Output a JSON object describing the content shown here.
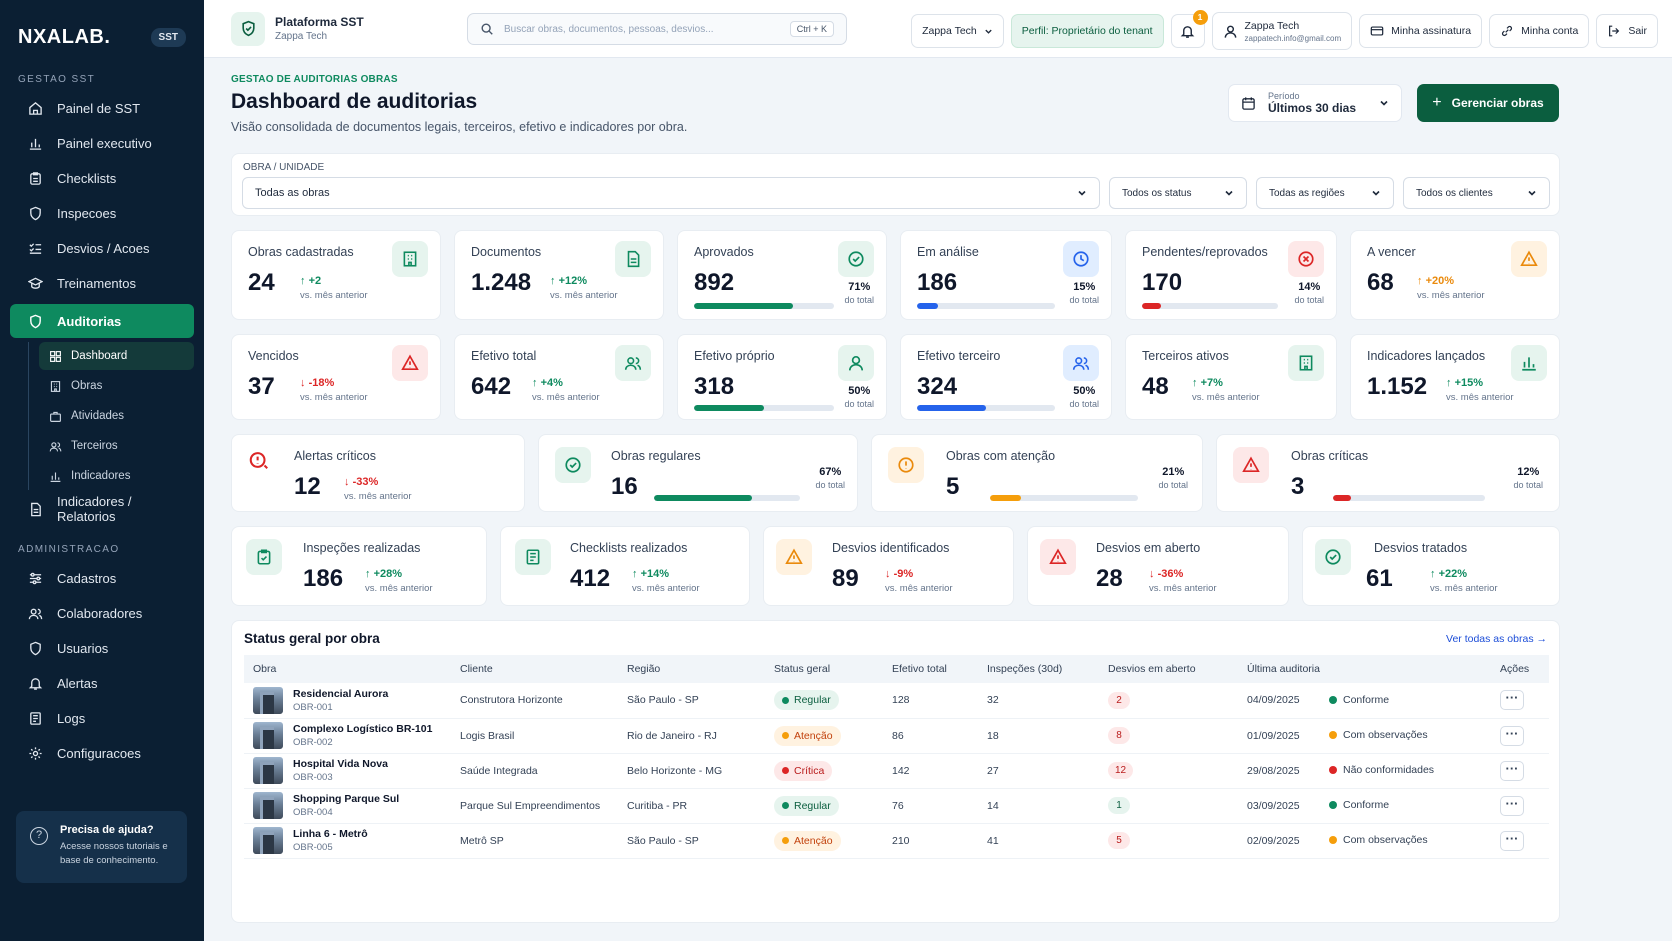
{
  "sidebar": {
    "brand": "NXALAB.",
    "badge": "SST",
    "sections": [
      {
        "label": "GESTAO SST"
      },
      {
        "label": "ADMINISTRACAO"
      }
    ],
    "items": {
      "painel_sst": "Painel de SST",
      "painel_exec": "Painel executivo",
      "checklists": "Checklists",
      "inspecoes": "Inspecoes",
      "desvios": "Desvios / Acoes",
      "treinamentos": "Treinamentos",
      "auditorias": "Auditorias",
      "indicadores": "Indicadores / Relatorios",
      "cadastros": "Cadastros",
      "colaboradores": "Colaboradores",
      "usuarios": "Usuarios",
      "alertas": "Alertas",
      "logs": "Logs",
      "config": "Configuracoes"
    },
    "sub_items": {
      "dashboard": "Dashboard",
      "obras": "Obras",
      "atividades": "Atividades",
      "terceiros": "Terceiros",
      "indicadores": "Indicadores"
    },
    "help": {
      "title": "Precisa de ajuda?",
      "text": "Acesse nossos tutoriais e base de conhecimento."
    }
  },
  "topbar": {
    "platform_title": "Plataforma SST",
    "platform_sub": "Zappa Tech",
    "search_placeholder": "Buscar obras, documentos, pessoas, desvios...",
    "search_kbd": "Ctrl + K",
    "tenant": "Zappa Tech",
    "perfil": "Perfil: Proprietário do tenant",
    "notifications": "1",
    "user_name": "Zappa Tech",
    "user_email": "zappatech.info@gmail.com",
    "assinatura": "Minha assinatura",
    "conta": "Minha conta",
    "sair": "Sair"
  },
  "header": {
    "crumb": "GESTAO DE AUDITORIAS OBRAS",
    "title": "Dashboard de auditorias",
    "subtitle": "Visão consolidada de documentos legais, terceiros, efetivo e indicadores por obra.",
    "period_label": "Período",
    "period_value": "Últimos 30 dias",
    "manage": "Gerenciar obras"
  },
  "filters": {
    "label": "OBRA / UNIDADE",
    "obra": "Todas as obras",
    "status": "Todos os status",
    "regioes": "Todas as regiões",
    "clientes": "Todos os clientes"
  },
  "vs_text": "vs. mês anterior",
  "total_text": "do total",
  "row1": {
    "obras": {
      "label": "Obras cadastradas",
      "value": "24",
      "delta": "+2"
    },
    "docs": {
      "label": "Documentos",
      "value": "1.248",
      "delta": "+12%"
    },
    "aprov": {
      "label": "Aprovados",
      "value": "892",
      "pct": "71%",
      "fill": 0.71
    },
    "analise": {
      "label": "Em análise",
      "value": "186",
      "pct": "15%",
      "fill": 0.15
    },
    "pend": {
      "label": "Pendentes/reprovados",
      "value": "170",
      "pct": "14%",
      "fill": 0.14
    },
    "vencer": {
      "label": "A vencer",
      "value": "68",
      "delta": "+20%"
    }
  },
  "row2": {
    "vencidos": {
      "label": "Vencidos",
      "value": "37",
      "delta": "-18%"
    },
    "efetivo": {
      "label": "Efetivo total",
      "value": "642",
      "delta": "+4%"
    },
    "proprio": {
      "label": "Efetivo próprio",
      "value": "318",
      "pct": "50%",
      "fill": 0.5
    },
    "terceiro": {
      "label": "Efetivo terceiro",
      "value": "324",
      "pct": "50%",
      "fill": 0.5
    },
    "ativos": {
      "label": "Terceiros ativos",
      "value": "48",
      "delta": "+7%"
    },
    "indic": {
      "label": "Indicadores lançados",
      "value": "1.152",
      "delta": "+15%"
    }
  },
  "row3": {
    "alertas": {
      "label": "Alertas críticos",
      "value": "12",
      "delta": "-33%"
    },
    "regulares": {
      "label": "Obras regulares",
      "value": "16",
      "pct": "67%",
      "fill": 0.67
    },
    "atencao": {
      "label": "Obras com atenção",
      "value": "5",
      "pct": "21%",
      "fill": 0.21
    },
    "criticas": {
      "label": "Obras críticas",
      "value": "3",
      "pct": "12%",
      "fill": 0.12
    }
  },
  "row4": {
    "inspecoes": {
      "label": "Inspeções realizadas",
      "value": "186",
      "delta": "+28%"
    },
    "checklists": {
      "label": "Checklists realizados",
      "value": "412",
      "delta": "+14%"
    },
    "identificados": {
      "label": "Desvios identificados",
      "value": "89",
      "delta": "-9%"
    },
    "aberto": {
      "label": "Desvios em aberto",
      "value": "28",
      "delta": "-36%"
    },
    "tratados": {
      "label": "Desvios tratados",
      "value": "61",
      "delta": "+22%"
    }
  },
  "table": {
    "title": "Status geral por obra",
    "link": "Ver todas as obras",
    "headers": [
      "Obra",
      "Cliente",
      "Região",
      "Status geral",
      "Efetivo total",
      "Inspeções (30d)",
      "Desvios em aberto",
      "Última auditoria",
      "Ações"
    ],
    "rows": [
      {
        "name": "Residencial Aurora",
        "code": "OBR-001",
        "cliente": "Construtora Horizonte",
        "regiao": "São Paulo - SP",
        "status": "Regular",
        "efetivo": "128",
        "insp": "32",
        "desvios": "2",
        "data": "04/09/2025",
        "aud": "Conforme"
      },
      {
        "name": "Complexo Logístico BR-101",
        "code": "OBR-002",
        "cliente": "Logis Brasil",
        "regiao": "Rio de Janeiro - RJ",
        "status": "Atenção",
        "efetivo": "86",
        "insp": "18",
        "desvios": "8",
        "data": "01/09/2025",
        "aud": "Com observações"
      },
      {
        "name": "Hospital Vida Nova",
        "code": "OBR-003",
        "cliente": "Saúde Integrada",
        "regiao": "Belo Horizonte - MG",
        "status": "Crítica",
        "efetivo": "142",
        "insp": "27",
        "desvios": "12",
        "data": "29/08/2025",
        "aud": "Não conformidades"
      },
      {
        "name": "Shopping Parque Sul",
        "code": "OBR-004",
        "cliente": "Parque Sul Empreendimentos",
        "regiao": "Curitiba - PR",
        "status": "Regular",
        "efetivo": "76",
        "insp": "14",
        "desvios": "1",
        "data": "03/09/2025",
        "aud": "Conforme"
      },
      {
        "name": "Linha 6 - Metrô",
        "code": "OBR-005",
        "cliente": "Metrô SP",
        "regiao": "São Paulo - SP",
        "status": "Atenção",
        "efetivo": "210",
        "insp": "41",
        "desvios": "5",
        "data": "02/09/2025",
        "aud": "Com observações"
      }
    ]
  },
  "colors": {
    "primary": "#0b5e3f",
    "accent": "#0e8a5f",
    "sidebar": "#0b1f33",
    "danger": "#dc2626",
    "warning": "#f59e0b",
    "info": "#2563eb"
  }
}
